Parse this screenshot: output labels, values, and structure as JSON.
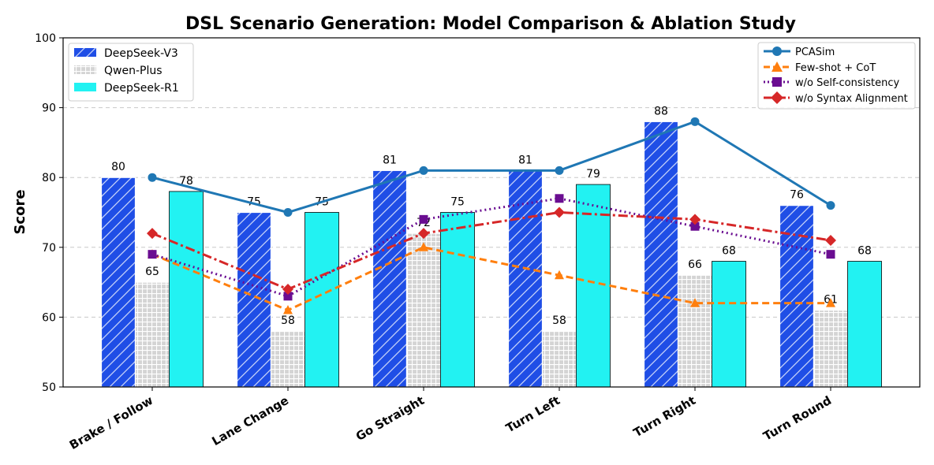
{
  "chart_data": {
    "type": "bar",
    "title": "DSL Scenario Generation: Model Comparison & Ablation Study",
    "xlabel": "",
    "ylabel": "Score",
    "ylim": [
      50,
      100
    ],
    "yticks": [
      50,
      60,
      70,
      80,
      90,
      100
    ],
    "grid": "y-dashed",
    "categories": [
      "Brake / Follow",
      "Lane Change",
      "Go Straight",
      "Turn Left",
      "Turn Right",
      "Turn Round"
    ],
    "bar_series": [
      {
        "name": "DeepSeek-V3",
        "values": [
          80,
          75,
          81,
          81,
          88,
          76
        ],
        "color": "#1f4ee6",
        "pattern": "diagonal-hatch"
      },
      {
        "name": "Qwen-Plus",
        "values": [
          65,
          58,
          72,
          58,
          66,
          61
        ],
        "color": "#d4d4d4",
        "pattern": "grid-hatch"
      },
      {
        "name": "DeepSeek-R1",
        "values": [
          78,
          75,
          75,
          79,
          68,
          68
        ],
        "color": "#22f2f2",
        "pattern": "solid"
      }
    ],
    "line_series": [
      {
        "name": "PCASim",
        "values": [
          80,
          75,
          81,
          81,
          88,
          76
        ],
        "color": "#1f77b4",
        "marker": "circle",
        "dash": "solid"
      },
      {
        "name": "Few-shot + CoT",
        "values": [
          69,
          61,
          70,
          66,
          62,
          62
        ],
        "color": "#ff7f0e",
        "marker": "triangle",
        "dash": "dashed"
      },
      {
        "name": "w/o Self-consistency",
        "values": [
          69,
          63,
          74,
          77,
          73,
          69
        ],
        "color": "#6a0d91",
        "marker": "square",
        "dash": "dotted"
      },
      {
        "name": "w/o Syntax Alignment",
        "values": [
          72,
          64,
          72,
          75,
          74,
          71
        ],
        "color": "#d62728",
        "marker": "diamond",
        "dash": "dashdot"
      }
    ],
    "bar_legend_position": "top-left",
    "line_legend_position": "top-right"
  }
}
